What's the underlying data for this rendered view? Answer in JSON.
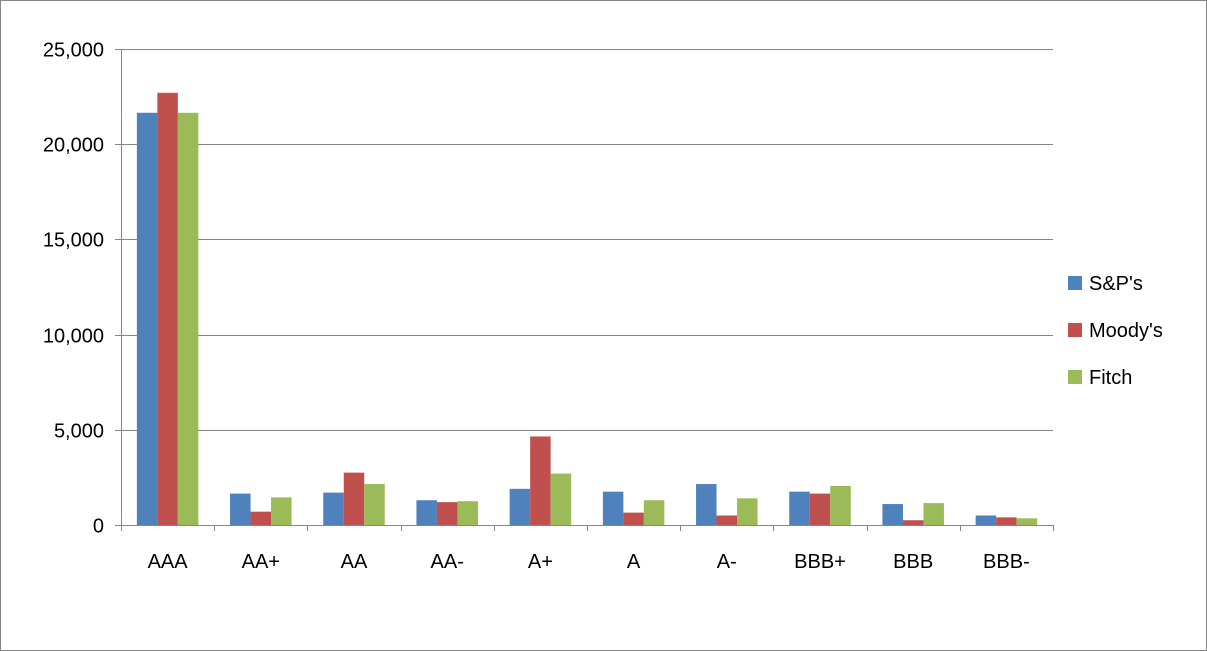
{
  "chart_data": {
    "type": "bar",
    "title": "",
    "xlabel": "",
    "ylabel": "",
    "categories": [
      "AAA",
      "AA+",
      "AA",
      "AA-",
      "A+",
      "A",
      "A-",
      "BBB+",
      "BBB",
      "BBB-"
    ],
    "series": [
      {
        "name": "S&P's",
        "color": "#4f81bd",
        "values": [
          21650,
          1650,
          1700,
          1300,
          1900,
          1750,
          2150,
          1750,
          1100,
          500
        ]
      },
      {
        "name": "Moody's",
        "color": "#c0504d",
        "values": [
          22700,
          700,
          2750,
          1200,
          4650,
          650,
          500,
          1650,
          250,
          400
        ]
      },
      {
        "name": "Fitch",
        "color": "#9bbb59",
        "values": [
          21650,
          1450,
          2150,
          1250,
          2700,
          1300,
          1400,
          2050,
          1150,
          350
        ]
      }
    ],
    "ylim": [
      0,
      25000
    ],
    "yticks": [
      "0",
      "5,000",
      "10,000",
      "15,000",
      "20,000",
      "25,000"
    ],
    "grid": true,
    "legend_position": "right"
  }
}
